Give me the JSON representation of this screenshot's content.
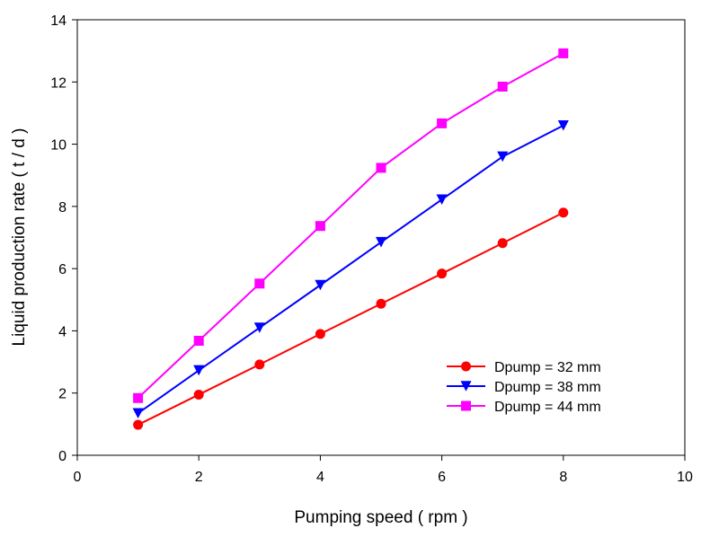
{
  "chart_data": {
    "type": "line",
    "title": "",
    "xlabel": "Pumping speed ( rpm )",
    "ylabel": "Liquid production rate ( t / d )",
    "xlim": [
      0,
      10
    ],
    "ylim": [
      0,
      14
    ],
    "xticks": [
      0,
      2,
      4,
      6,
      8,
      10
    ],
    "yticks": [
      0,
      2,
      4,
      6,
      8,
      10,
      12,
      14
    ],
    "grid": false,
    "legend_position": "lower-right",
    "x": [
      1,
      2,
      3,
      4,
      5,
      6,
      7,
      8
    ],
    "series": [
      {
        "name": "Dpump = 32 mm",
        "color": "#ff0000",
        "marker": "circle",
        "values": [
          0.98,
          1.95,
          2.92,
          3.9,
          4.87,
          5.84,
          6.82,
          7.8
        ]
      },
      {
        "name": "Dpump = 38 mm",
        "color": "#0000ff",
        "marker": "triangle-down",
        "values": [
          1.35,
          2.73,
          4.1,
          5.47,
          6.85,
          8.22,
          9.6,
          10.6
        ]
      },
      {
        "name": "Dpump = 44 mm",
        "color": "#ff00ff",
        "marker": "square",
        "values": [
          1.84,
          3.68,
          5.52,
          7.37,
          9.24,
          10.67,
          11.85,
          12.92
        ]
      }
    ]
  }
}
